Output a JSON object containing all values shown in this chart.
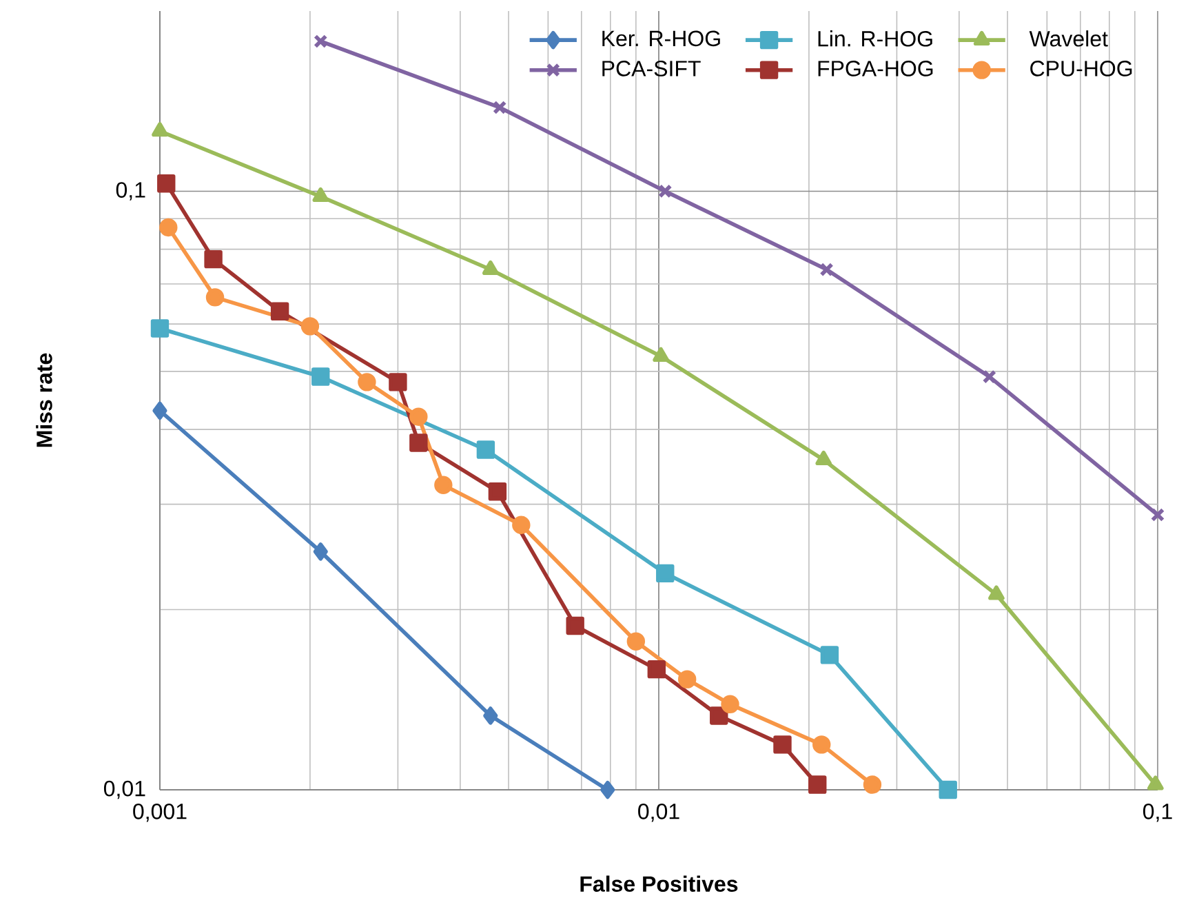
{
  "chart_data": {
    "type": "line",
    "xlabel": "False Positives",
    "ylabel": "Miss rate",
    "log": "xy",
    "grid": true,
    "legend": "top right",
    "xlim": [
      0.001,
      0.1
    ],
    "ylim": [
      0.01,
      0.2
    ],
    "xticks": [
      {
        "value": 0.001,
        "label": "0,001"
      },
      {
        "value": 0.01,
        "label": "0,01"
      },
      {
        "value": 0.1,
        "label": "0,1"
      }
    ],
    "yticks": [
      {
        "value": 0.01,
        "label": "0,01"
      },
      {
        "value": 0.1,
        "label": "0,1"
      }
    ],
    "series": [
      {
        "name": "Ker. R-HOG",
        "color": "#4a7ebb",
        "marker": "diamond",
        "x": [
          0.001,
          0.0021,
          0.0046,
          0.0079
        ],
        "values": [
          0.043,
          0.025,
          0.0133,
          0.01
        ]
      },
      {
        "name": "Lin. R-HOG",
        "color": "#4bacc6",
        "marker": "square",
        "x": [
          0.001,
          0.0021,
          0.0045,
          0.0103,
          0.022,
          0.038
        ],
        "values": [
          0.059,
          0.049,
          0.037,
          0.023,
          0.0168,
          0.01
        ]
      },
      {
        "name": "Wavelet",
        "color": "#9bbb59",
        "marker": "triangle",
        "x": [
          0.001,
          0.0021,
          0.0046,
          0.0101,
          0.0214,
          0.0475,
          0.099
        ],
        "values": [
          0.126,
          0.098,
          0.074,
          0.053,
          0.0356,
          0.0212,
          0.0102
        ]
      },
      {
        "name": "PCA-SIFT",
        "color": "#8064a2",
        "marker": "cross",
        "x": [
          0.0021,
          0.0048,
          0.0103,
          0.0217,
          0.046,
          0.1
        ],
        "values": [
          0.178,
          0.138,
          0.1,
          0.074,
          0.049,
          0.0288
        ]
      },
      {
        "name": "FPGA-HOG",
        "color": "#a0332f",
        "marker": "square",
        "x": [
          0.00103,
          0.00128,
          0.00174,
          0.003,
          0.0033,
          0.00475,
          0.0068,
          0.0099,
          0.0132,
          0.0177,
          0.0208
        ],
        "values": [
          0.103,
          0.077,
          0.063,
          0.048,
          0.038,
          0.0315,
          0.0188,
          0.0159,
          0.0133,
          0.0119,
          0.0102
        ]
      },
      {
        "name": "CPU-HOG",
        "color": "#f79646",
        "marker": "circle",
        "x": [
          0.00104,
          0.00129,
          0.002,
          0.0026,
          0.0033,
          0.0037,
          0.0053,
          0.009,
          0.0114,
          0.0139,
          0.0212,
          0.0268
        ],
        "values": [
          0.087,
          0.0665,
          0.0595,
          0.048,
          0.042,
          0.0323,
          0.0277,
          0.0177,
          0.0153,
          0.0139,
          0.0119,
          0.0102
        ]
      }
    ]
  }
}
